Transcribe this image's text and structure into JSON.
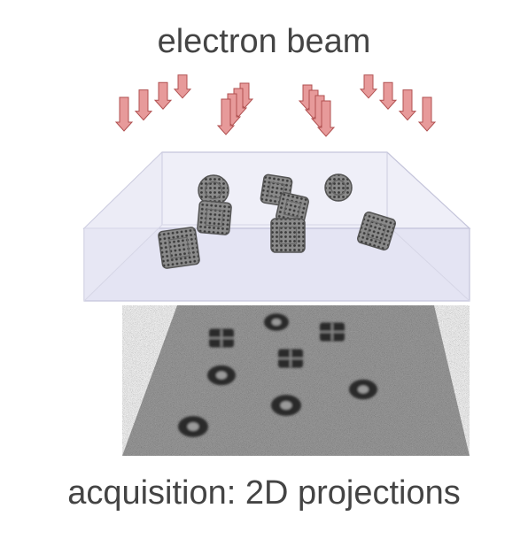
{
  "labels": {
    "top": "electron beam",
    "bottom": "acquisition: 2D projections"
  },
  "colors": {
    "arrow_fill": "#e79a9a",
    "arrow_stroke": "#b05050",
    "box_fill": "#e9e9f6",
    "box_edge": "#b9b9d3",
    "detector_gray": "#9b9b9b",
    "particle_dark": "#2a2a2a",
    "text": "#444444"
  },
  "arrow_groups": [
    {
      "name": "arrow-group-1",
      "count": 4
    },
    {
      "name": "arrow-group-2",
      "count": 4
    },
    {
      "name": "arrow-group-3",
      "count": 4
    },
    {
      "name": "arrow-group-4",
      "count": 4
    }
  ],
  "particles_3d": [
    {
      "name": "particle-a",
      "kind": "round"
    },
    {
      "name": "particle-b",
      "kind": "cube"
    },
    {
      "name": "particle-c",
      "kind": "cube"
    },
    {
      "name": "particle-d",
      "kind": "cube"
    },
    {
      "name": "particle-e",
      "kind": "round"
    },
    {
      "name": "particle-f",
      "kind": "cube"
    },
    {
      "name": "particle-g",
      "kind": "cube"
    },
    {
      "name": "particle-h",
      "kind": "cube"
    }
  ],
  "projections_2d": [
    {
      "name": "projection-1",
      "kind": "square"
    },
    {
      "name": "projection-2",
      "kind": "ring"
    },
    {
      "name": "projection-3",
      "kind": "square"
    },
    {
      "name": "projection-4",
      "kind": "ring"
    },
    {
      "name": "projection-5",
      "kind": "square"
    },
    {
      "name": "projection-6",
      "kind": "ring"
    },
    {
      "name": "projection-7",
      "kind": "ring"
    },
    {
      "name": "projection-8",
      "kind": "ring"
    }
  ]
}
